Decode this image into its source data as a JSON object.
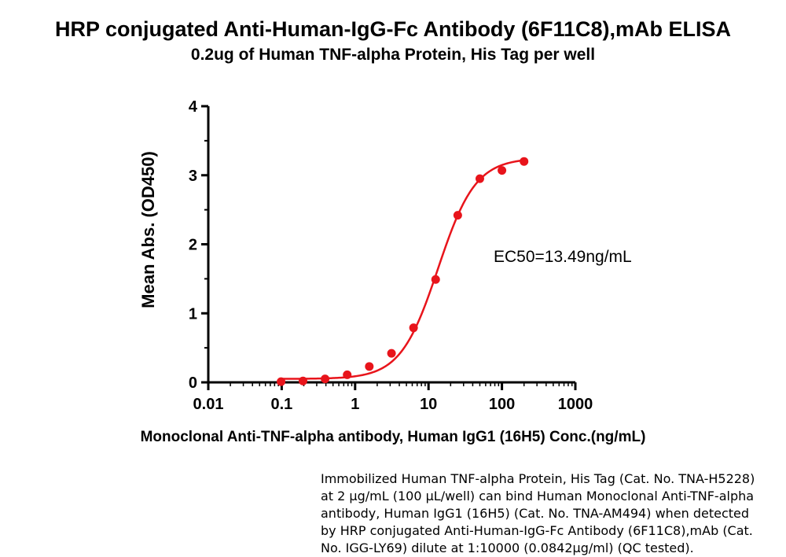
{
  "header": {
    "title": "HRP conjugated Anti-Human-IgG-Fc Antibody (6F11C8),mAb  ELISA",
    "subtitle": "0.2ug of Human TNF-alpha Protein, His Tag per well"
  },
  "chart_data": {
    "type": "scatter",
    "title": "HRP conjugated Anti-Human-IgG-Fc Antibody (6F11C8),mAb  ELISA",
    "subtitle": "0.2ug of Human TNF-alpha Protein, His Tag per well",
    "xlabel": "Monoclonal Anti-TNF-alpha antibody, Human IgG1 (16H5) Conc.(ng/mL)",
    "ylabel": "Mean Abs. (OD450)",
    "x_scale": "log",
    "xlim": [
      0.01,
      1000
    ],
    "ylim": [
      0,
      4
    ],
    "x_ticks": [
      "0.01",
      "0.1",
      "1",
      "10",
      "100",
      "1000"
    ],
    "y_ticks": [
      "0",
      "1",
      "2",
      "3",
      "4"
    ],
    "grid": false,
    "color": "#e8141b",
    "series": [
      {
        "x": [
          0.098,
          0.195,
          0.39,
          0.78,
          1.56,
          3.13,
          6.25,
          12.5,
          25,
          50,
          100,
          200
        ],
        "y": [
          0.01,
          0.02,
          0.05,
          0.11,
          0.23,
          0.42,
          0.79,
          1.49,
          2.42,
          2.95,
          3.07,
          3.2
        ]
      }
    ],
    "fit": {
      "bottom": 0.05,
      "top": 3.25,
      "ec50": 13.49,
      "hill": 1.7
    },
    "annotation": "EC50=13.49ng/mL"
  },
  "caption": "Immobilized Human TNF-alpha Protein, His Tag (Cat. No. TNA-H5228) at 2 μg/mL (100 μL/well) can bind Human Monoclonal Anti-TNF-alpha antibody, Human IgG1 (16H5) (Cat. No. TNA-AM494) when detected by HRP conjugated Anti-Human-IgG-Fc Antibody (6F11C8),mAb (Cat. No. IGG-LY69) dilute at 1:10000 (0.0842μg/ml) (QC tested)."
}
